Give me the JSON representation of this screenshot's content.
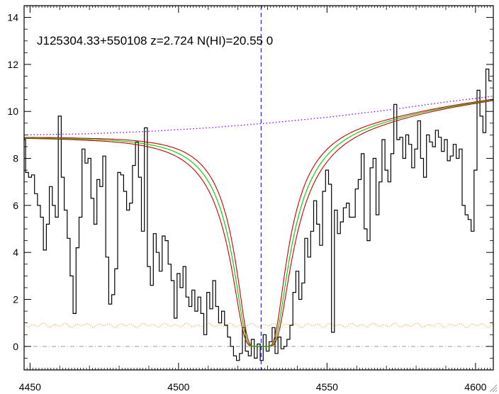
{
  "chart_data": {
    "type": "line",
    "title": "J125304.33+550108 z=2.724 N(HI)=20.55 0",
    "xlabel": "",
    "ylabel": "",
    "xlim": [
      4448,
      4606
    ],
    "ylim": [
      -1,
      14.5
    ],
    "x_ticks": [
      4450,
      4500,
      4550,
      4600
    ],
    "y_ticks": [
      0,
      2,
      4,
      6,
      8,
      10,
      12,
      14
    ],
    "grid": false,
    "legend": "none",
    "marker_x": 4527.8,
    "dla": {
      "center": 4527.8,
      "continuum_at_center": 9.5,
      "width_best": 11,
      "width_low": 10,
      "width_high": 12,
      "baseline": 0
    },
    "colors": {
      "flux": "#000000",
      "best_fit": "#00cc00",
      "bounds": "#cc0000",
      "continuum": "#8800ff",
      "error": "#ff8800",
      "marker": "#0000cc",
      "zero": "#999999"
    },
    "continuum": {
      "x": [
        4448,
        4470,
        4490,
        4510,
        4530,
        4550,
        4570,
        4590,
        4606
      ],
      "y": [
        9.0,
        9.05,
        9.15,
        9.3,
        9.5,
        9.75,
        10.05,
        10.4,
        10.65
      ]
    },
    "error_level": 0.9,
    "flux": {
      "x": [
        4448,
        4449,
        4450,
        4451,
        4452,
        4453,
        4454,
        4455,
        4456,
        4457,
        4458,
        4459,
        4460,
        4461,
        4462,
        4463,
        4464,
        4465,
        4466,
        4467,
        4468,
        4469,
        4470,
        4471,
        4472,
        4473,
        4474,
        4475,
        4476,
        4477,
        4478,
        4479,
        4480,
        4481,
        4482,
        4483,
        4484,
        4485,
        4486,
        4487,
        4488,
        4489,
        4490,
        4491,
        4492,
        4493,
        4494,
        4495,
        4496,
        4497,
        4498,
        4499,
        4500,
        4501,
        4502,
        4503,
        4504,
        4505,
        4506,
        4507,
        4508,
        4509,
        4510,
        4511,
        4512,
        4513,
        4514,
        4515,
        4516,
        4517,
        4518,
        4519,
        4520,
        4521,
        4522,
        4523,
        4524,
        4525,
        4526,
        4527,
        4528,
        4529,
        4530,
        4531,
        4532,
        4533,
        4534,
        4535,
        4536,
        4537,
        4538,
        4539,
        4540,
        4541,
        4542,
        4543,
        4544,
        4545,
        4546,
        4547,
        4548,
        4549,
        4550,
        4551,
        4552,
        4553,
        4554,
        4555,
        4556,
        4557,
        4558,
        4559,
        4560,
        4561,
        4562,
        4563,
        4564,
        4565,
        4566,
        4567,
        4568,
        4569,
        4570,
        4571,
        4572,
        4573,
        4574,
        4575,
        4576,
        4577,
        4578,
        4579,
        4580,
        4581,
        4582,
        4583,
        4584,
        4585,
        4586,
        4587,
        4588,
        4589,
        4590,
        4591,
        4592,
        4593,
        4594,
        4595,
        4596,
        4597,
        4598,
        4599,
        4600,
        4601,
        4602,
        4603,
        4604,
        4605
      ],
      "y": [
        8.8,
        7.4,
        7.2,
        7.3,
        6.5,
        6.0,
        5.5,
        4.1,
        5.2,
        6.8,
        6.0,
        5.5,
        9.8,
        7.2,
        5.8,
        4.6,
        3.0,
        1.4,
        4.2,
        5.5,
        8.4,
        7.8,
        8.0,
        6.3,
        5.2,
        7.1,
        6.8,
        8.1,
        3.8,
        1.8,
        2.2,
        3.3,
        7.4,
        7.3,
        6.6,
        5.8,
        6.1,
        7.7,
        8.7,
        7.2,
        4.9,
        9.3,
        3.4,
        2.6,
        4.8,
        4.0,
        3.2,
        4.7,
        4.5,
        3.5,
        2.8,
        1.2,
        3.1,
        2.5,
        3.4,
        2.1,
        1.7,
        2.4,
        1.5,
        2.1,
        1.4,
        0.5,
        2.3,
        1.6,
        2.8,
        1.7,
        1.0,
        1.5,
        0.9,
        0.4,
        0.0,
        -0.4,
        -0.6,
        -0.3,
        0.8,
        -0.2,
        -0.4,
        0.3,
        -0.5,
        0.1,
        -0.6,
        0.5,
        -0.2,
        0.2,
        0.8,
        -0.3,
        0.4,
        -0.1,
        0.0,
        0.3,
        0.9,
        2.3,
        3.2,
        2.0,
        2.7,
        4.6,
        3.8,
        4.9,
        6.2,
        5.2,
        4.3,
        6.6,
        7.5,
        6.9,
        0.6,
        5.8,
        4.8,
        5.3,
        5.9,
        6.1,
        5.5,
        5.5,
        6.7,
        7.1,
        8.2,
        5.0,
        4.5,
        7.6,
        8.0,
        5.6,
        7.0,
        8.8,
        7.5,
        7.0,
        8.2,
        10.3,
        8.8,
        8.9,
        8.0,
        9.0,
        8.6,
        7.6,
        8.4,
        9.6,
        8.0,
        7.2,
        9.0,
        8.7,
        8.5,
        9.2,
        8.9,
        8.3,
        8.8,
        7.9,
        8.1,
        8.6,
        8.0,
        8.4,
        6.0,
        5.6,
        5.4,
        4.9,
        7.5,
        10.9,
        9.8,
        9.1,
        11.8,
        11.3
      ]
    }
  },
  "icons": {
    "corner": "resize-grip-icon"
  }
}
